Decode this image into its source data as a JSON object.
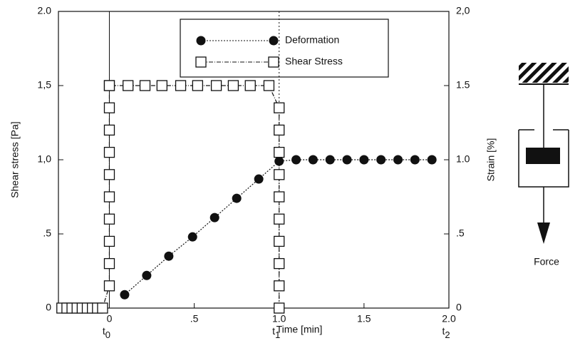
{
  "chart_data": {
    "type": "line",
    "xlabel": "Time [min]",
    "ylabel": "Shear stress [Pa]",
    "y2label": "Strain [%]",
    "xlim": [
      -0.3,
      2.0
    ],
    "ylim": [
      0,
      2.0
    ],
    "y2lim": [
      0,
      2.0
    ],
    "xticks": [
      0,
      {
        "value": 0.5,
        "label": ".5"
      },
      {
        "value": 1.0,
        "label": "1.0"
      },
      1.5,
      {
        "value": 2.0,
        "label": "2.0"
      }
    ],
    "yticks": [
      0,
      {
        "value": 0.5,
        "label": ".5"
      },
      {
        "value": 1.0,
        "label": "1,0"
      },
      {
        "value": 1.5,
        "label": "1,5"
      },
      {
        "value": 2.0,
        "label": "2.0"
      }
    ],
    "y2ticks": [
      0,
      {
        "value": 0.5,
        "label": ".5"
      },
      {
        "value": 1.0,
        "label": "1.0"
      },
      1.5,
      {
        "value": 2.0,
        "label": "2,0"
      }
    ],
    "annotations": [
      {
        "text": "t",
        "sub": "0",
        "x": 0
      },
      {
        "text": "t",
        "sub": "1",
        "x": 1.0
      },
      {
        "text": "t",
        "sub": "2",
        "x": 2.0
      }
    ],
    "side_label": "Force",
    "series": [
      {
        "name": "Deformation",
        "color": "#111",
        "marker": "circle",
        "axis": "y2",
        "x": [
          0.09,
          0.22,
          0.35,
          0.49,
          0.62,
          0.75,
          0.88,
          1.0,
          1.1,
          1.2,
          1.3,
          1.4,
          1.5,
          1.6,
          1.7,
          1.8,
          1.9
        ],
        "values": [
          0.09,
          0.22,
          0.35,
          0.48,
          0.61,
          0.74,
          0.87,
          0.99,
          1.0,
          1.0,
          1.0,
          1.0,
          1.0,
          1.0,
          1.0,
          1.0,
          1.0
        ]
      },
      {
        "name": "Shear Stress",
        "color": "#111",
        "marker": "square",
        "x": [
          -0.28,
          -0.25,
          -0.22,
          -0.19,
          -0.16,
          -0.13,
          -0.1,
          -0.07,
          -0.04,
          0,
          0,
          0,
          0,
          0,
          0,
          0,
          0,
          0,
          0,
          0,
          0.11,
          0.21,
          0.31,
          0.42,
          0.52,
          0.63,
          0.73,
          0.83,
          0.94,
          1.0,
          1.0,
          1.0,
          1.0,
          1.0,
          1.0,
          1.0,
          1.0,
          1.0,
          1.0
        ],
        "values": [
          0,
          0,
          0,
          0,
          0,
          0,
          0,
          0,
          0,
          0.15,
          0.3,
          0.45,
          0.6,
          0.75,
          0.9,
          1.05,
          1.2,
          1.35,
          1.5,
          1.5,
          1.5,
          1.5,
          1.5,
          1.5,
          1.5,
          1.5,
          1.5,
          1.5,
          1.5,
          1.35,
          1.2,
          1.05,
          0.9,
          0.75,
          0.6,
          0.45,
          0.3,
          0.15,
          0
        ]
      }
    ]
  }
}
